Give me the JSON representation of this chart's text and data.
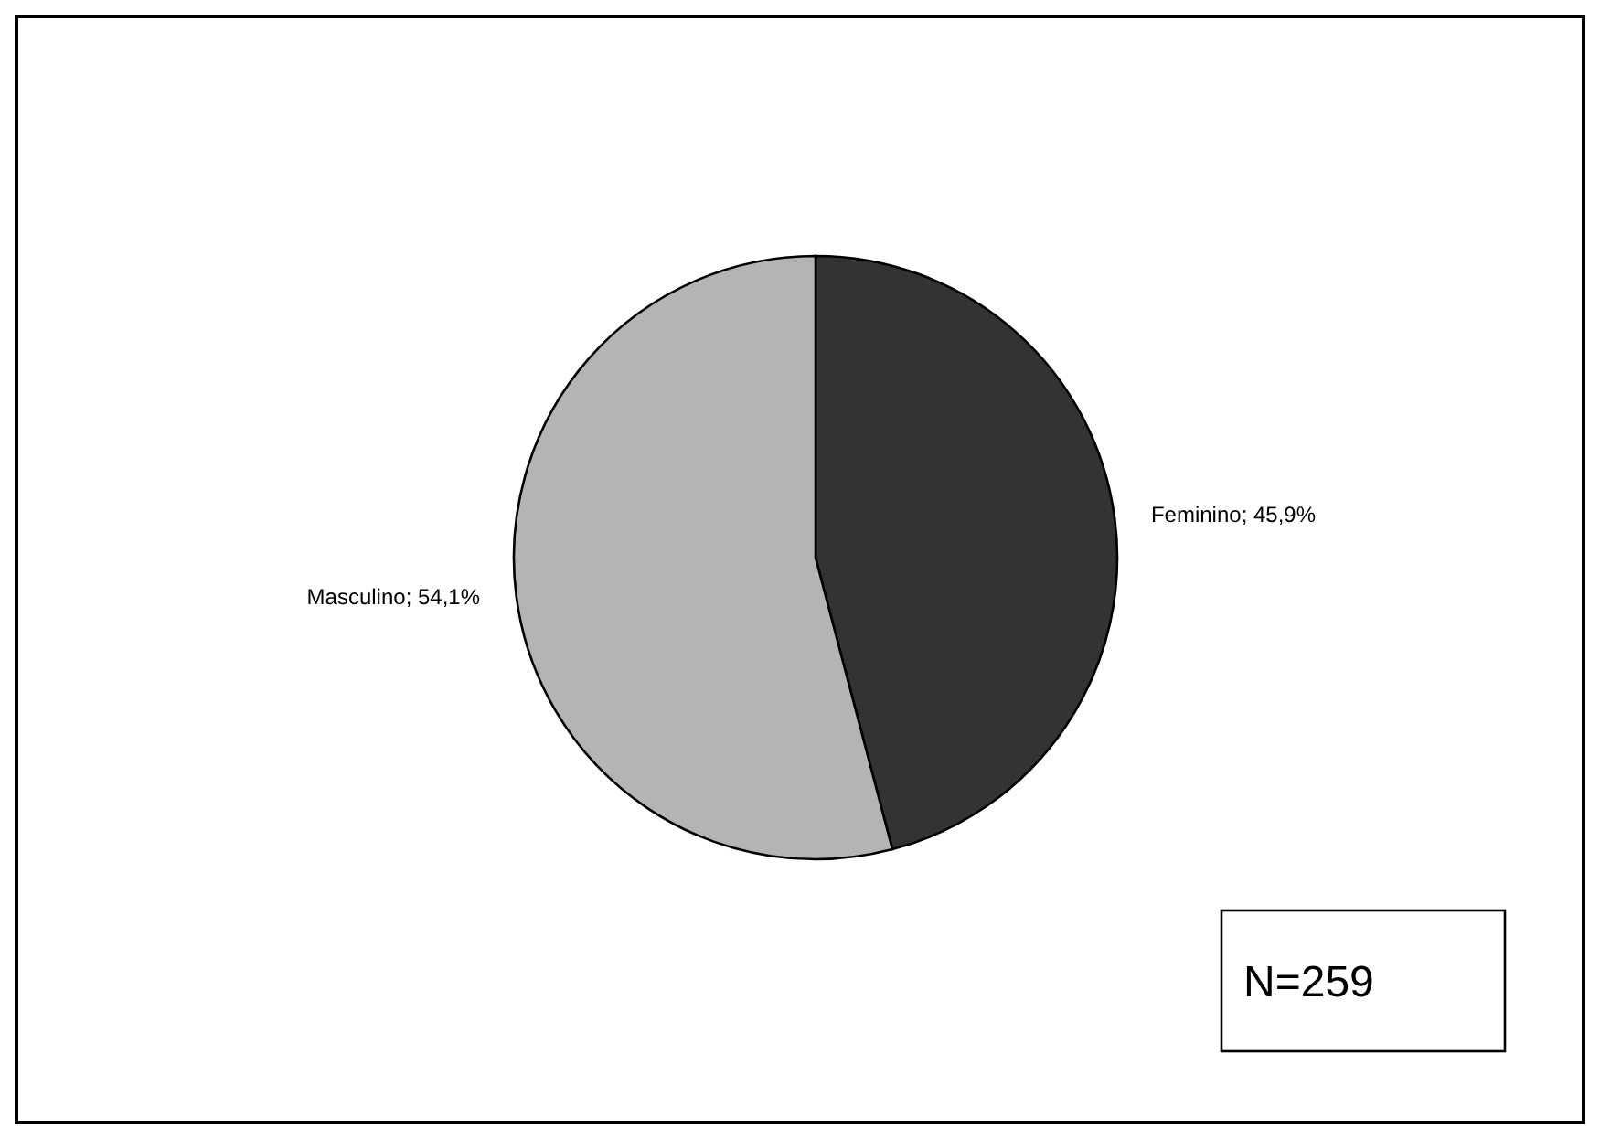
{
  "chart_data": {
    "type": "pie",
    "categories": [
      "Feminino",
      "Masculino"
    ],
    "values": [
      45.9,
      54.1
    ],
    "colors": [
      "#333333",
      "#b4b4b4"
    ],
    "value_labels": [
      "; 45,9%",
      "; 54,1%"
    ],
    "legend": false,
    "annotations": [
      "N=259"
    ]
  }
}
